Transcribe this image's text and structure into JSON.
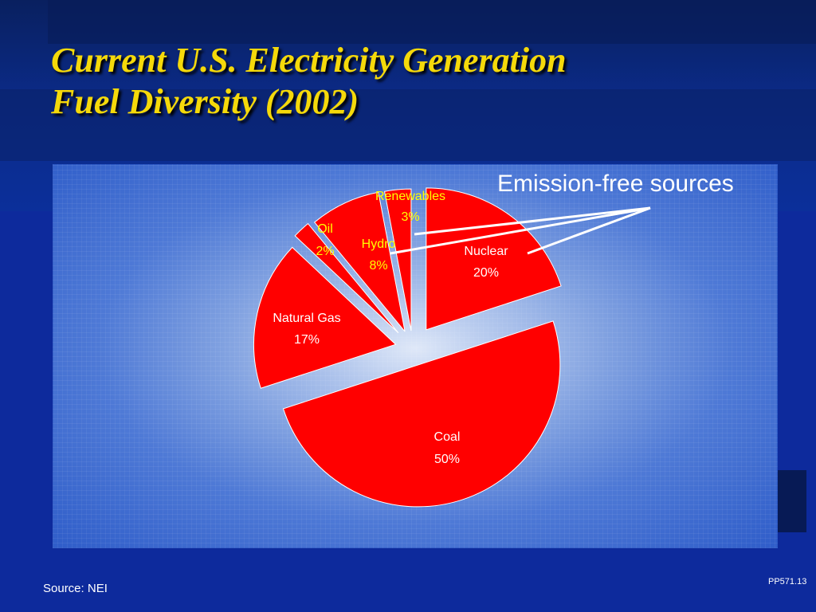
{
  "slide": {
    "title_line1": "Current U.S. Electricity Generation",
    "title_line2": "Fuel Diversity (2002)",
    "annotation": "Emission-free sources",
    "source": "Source:  NEI",
    "code": "PP571.13"
  },
  "colors": {
    "slice": "#ff0000",
    "label_white": "#ffffff",
    "label_yellow": "#ffff00",
    "title": "#f5d90a"
  },
  "chart_data": {
    "type": "pie",
    "exploded": true,
    "slices": [
      {
        "label": "Nuclear",
        "value": 20,
        "display": "20%",
        "label_color": "white"
      },
      {
        "label": "Coal",
        "value": 50,
        "display": "50%",
        "label_color": "white"
      },
      {
        "label": "Natural Gas",
        "value": 17,
        "display": "17%",
        "label_color": "white"
      },
      {
        "label": "Oil",
        "value": 2,
        "display": "2%",
        "label_color": "yellow"
      },
      {
        "label": "Hydro",
        "value": 8,
        "display": "8%",
        "label_color": "yellow"
      },
      {
        "label": "Renewables",
        "value": 3,
        "display": "3%",
        "label_color": "yellow"
      }
    ]
  }
}
